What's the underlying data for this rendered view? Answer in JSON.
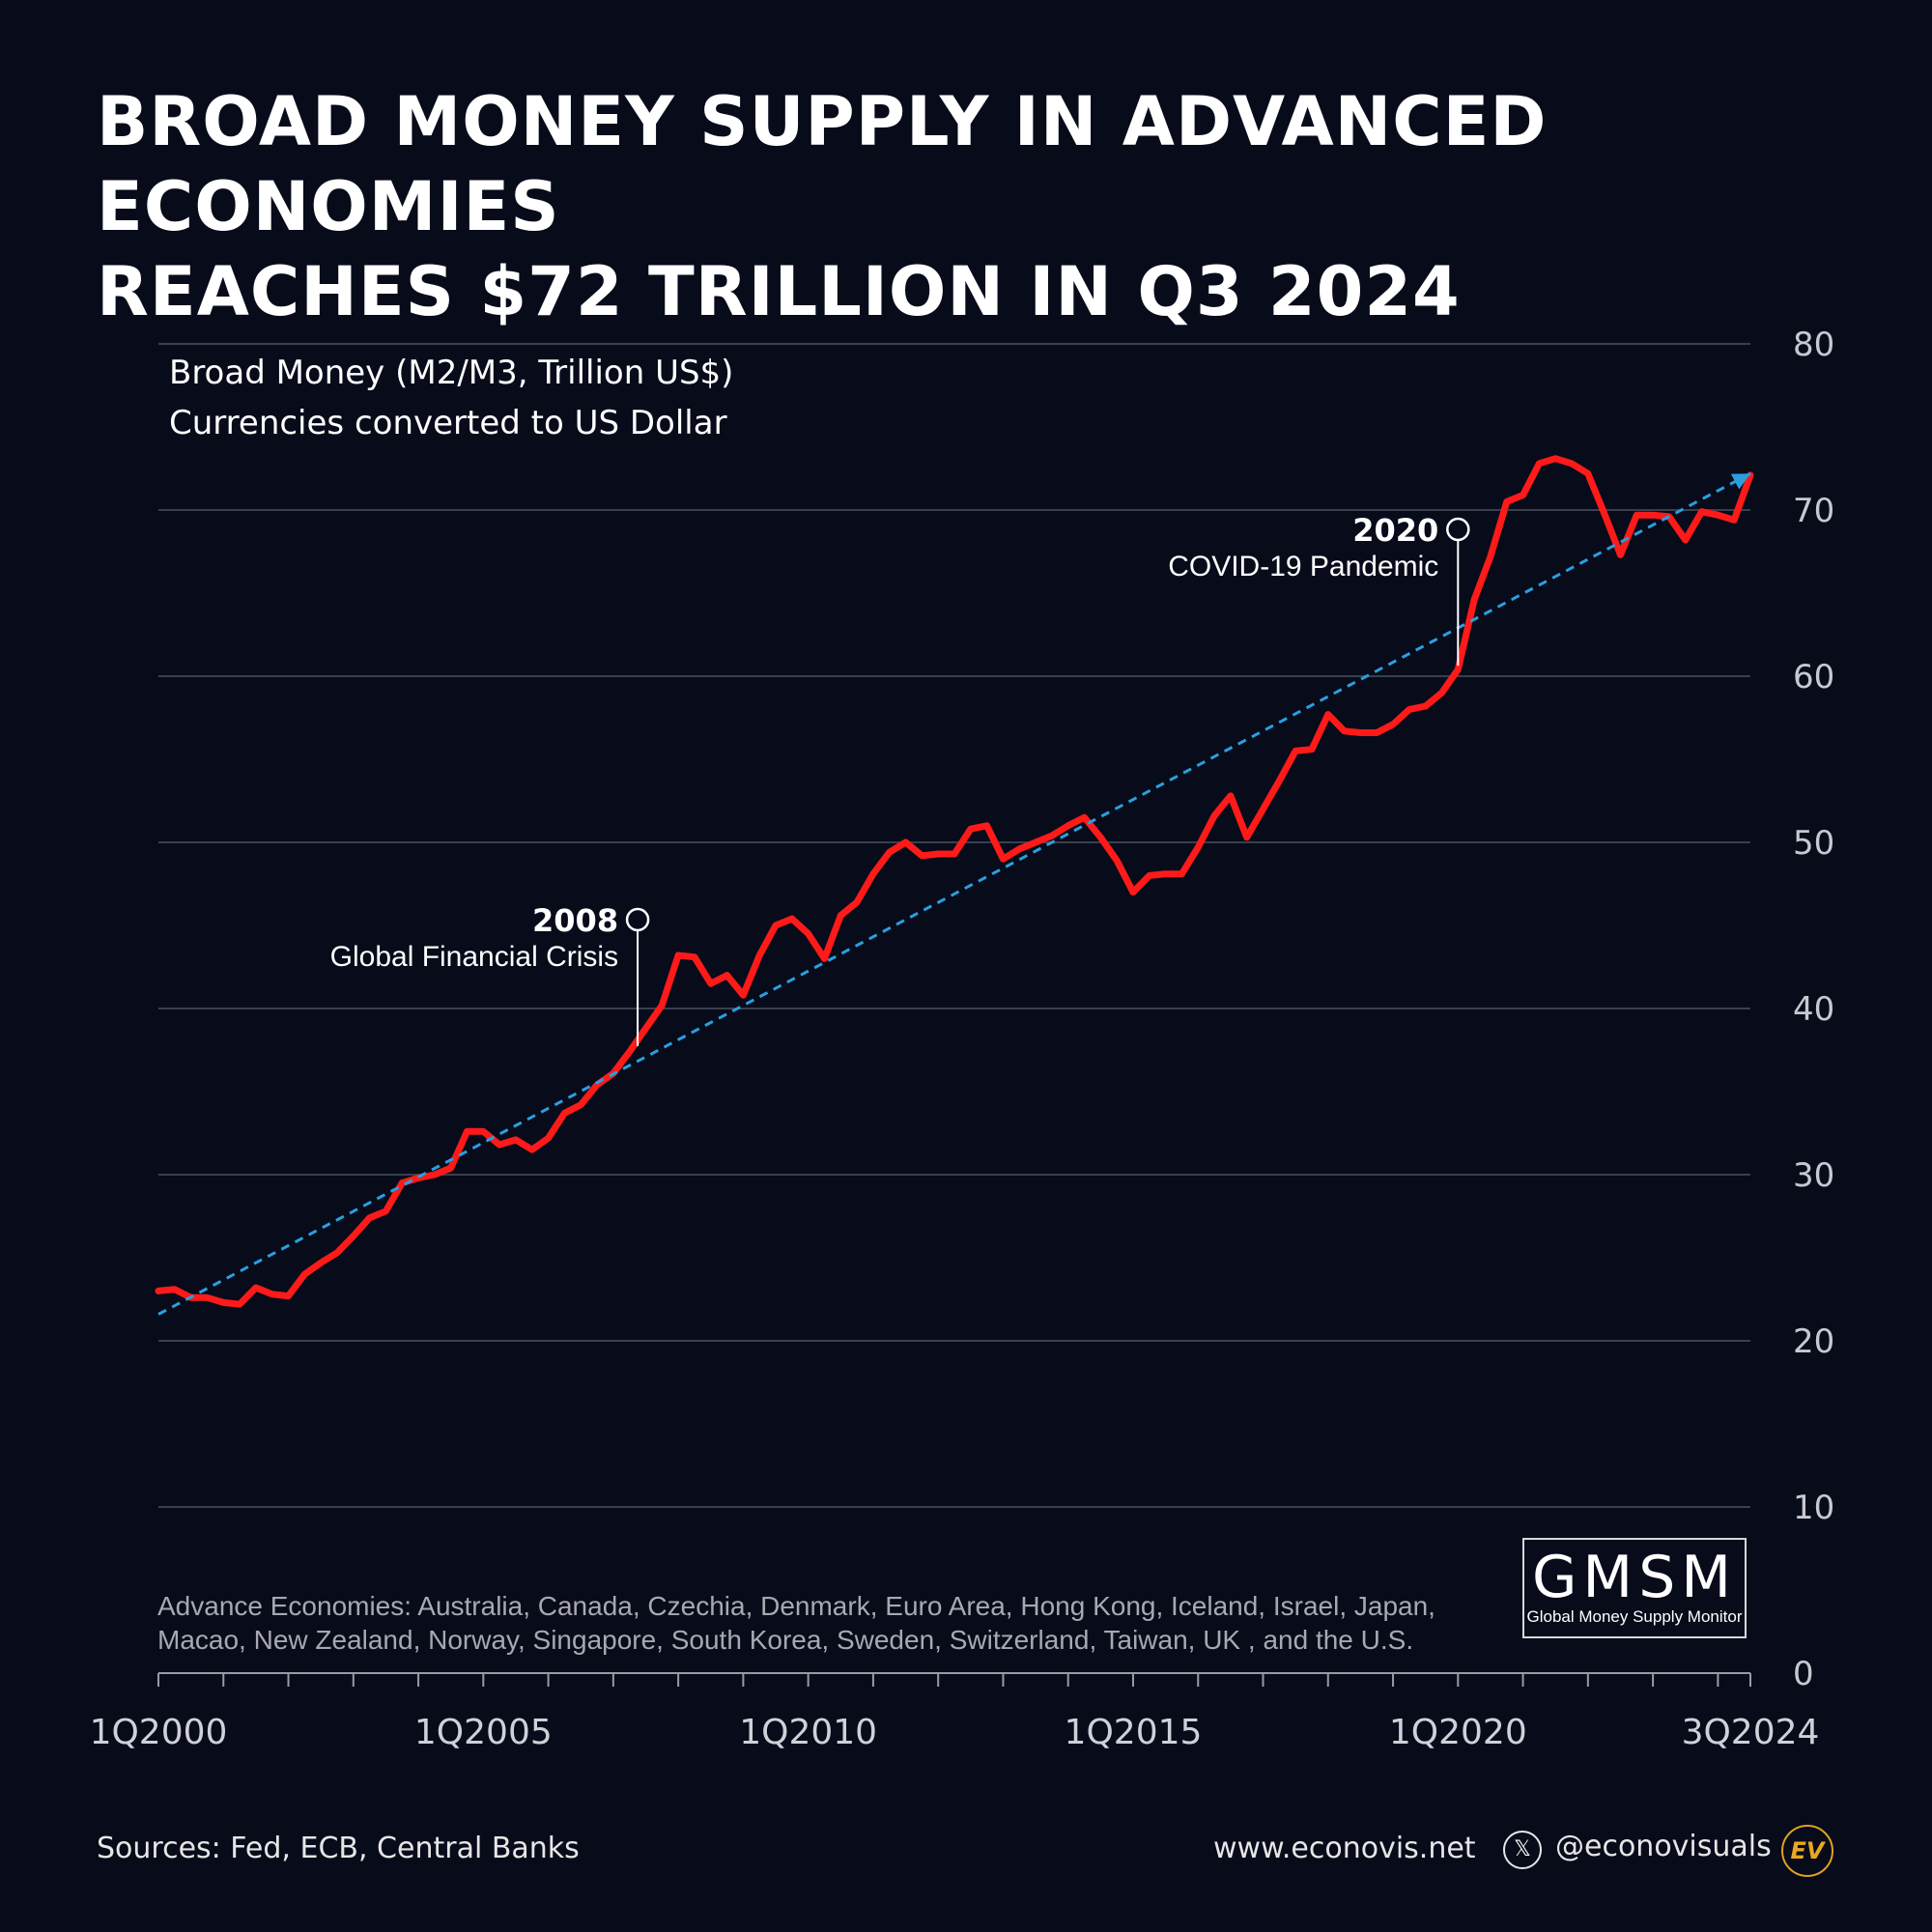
{
  "header": {
    "title_line1": "BROAD MONEY SUPPLY IN ADVANCED ECONOMIES",
    "title_line2": "REACHES $72 TRILLION IN Q3 2024"
  },
  "chart_data": {
    "type": "line",
    "subtitle_line1": "Broad Money (M2/M3, Trillion US$)",
    "subtitle_line2": "Currencies converted to US Dollar",
    "ylim": [
      0,
      80
    ],
    "yticks": [
      "0",
      "10",
      "20",
      "30",
      "40",
      "50",
      "60",
      "70",
      "80"
    ],
    "x_tick_labels": [
      "1Q2000",
      "1Q2005",
      "1Q2010",
      "1Q2015",
      "1Q2020",
      "3Q2024"
    ],
    "grid": true,
    "series": [
      {
        "color": "#ff1a1a",
        "x": [
          2000.0,
          2000.25,
          2000.5,
          2000.75,
          2001.0,
          2001.25,
          2001.5,
          2001.75,
          2002.0,
          2002.25,
          2002.5,
          2002.75,
          2003.0,
          2003.25,
          2003.5,
          2003.75,
          2004.0,
          2004.25,
          2004.5,
          2004.75,
          2005.0,
          2005.25,
          2005.5,
          2005.75,
          2006.0,
          2006.25,
          2006.5,
          2006.75,
          2007.0,
          2007.25,
          2007.5,
          2007.75,
          2008.0,
          2008.25,
          2008.5,
          2008.75,
          2009.0,
          2009.25,
          2009.5,
          2009.75,
          2010.0,
          2010.25,
          2010.5,
          2010.75,
          2011.0,
          2011.25,
          2011.5,
          2011.75,
          2012.0,
          2012.25,
          2012.5,
          2012.75,
          2013.0,
          2013.25,
          2013.5,
          2013.75,
          2014.0,
          2014.25,
          2014.5,
          2014.75,
          2015.0,
          2015.25,
          2015.5,
          2015.75,
          2016.0,
          2016.25,
          2016.5,
          2016.75,
          2017.0,
          2017.25,
          2017.5,
          2017.75,
          2018.0,
          2018.25,
          2018.5,
          2018.75,
          2019.0,
          2019.25,
          2019.5,
          2019.75,
          2020.0,
          2020.25,
          2020.5,
          2020.75,
          2021.0,
          2021.25,
          2021.5,
          2021.75,
          2022.0,
          2022.25,
          2022.5,
          2022.75,
          2023.0,
          2023.25,
          2023.5,
          2023.75,
          2024.0,
          2024.25,
          2024.5
        ],
        "values": [
          23.0,
          23.1,
          22.6,
          22.6,
          22.3,
          22.2,
          23.2,
          22.8,
          22.7,
          24.0,
          24.7,
          25.3,
          26.3,
          27.4,
          27.8,
          29.5,
          29.8,
          30.0,
          30.4,
          32.6,
          32.6,
          31.8,
          32.1,
          31.5,
          32.2,
          33.7,
          34.2,
          35.4,
          36.1,
          37.4,
          38.8,
          40.2,
          43.2,
          43.1,
          41.5,
          42.0,
          40.8,
          43.2,
          45.0,
          45.4,
          44.5,
          43.0,
          45.6,
          46.4,
          48.1,
          49.4,
          50.0,
          49.2,
          49.3,
          49.3,
          50.8,
          51.0,
          49.0,
          49.6,
          50.0,
          50.4,
          51.0,
          51.5,
          50.3,
          48.9,
          47.0,
          48.0,
          48.1,
          48.1,
          49.7,
          51.6,
          52.8,
          50.3,
          52.0,
          53.7,
          55.5,
          55.6,
          57.7,
          56.7,
          56.6,
          56.6,
          57.1,
          58.0,
          58.2,
          59.0,
          60.4,
          64.6,
          67.2,
          70.5,
          70.9,
          72.8,
          73.1,
          72.8,
          72.2,
          69.8,
          67.3,
          69.7,
          69.7,
          69.6,
          68.2,
          69.9,
          69.7,
          69.4,
          72.1
        ]
      },
      {
        "type": "trend",
        "style": "dashed",
        "color": "#2a9fe0",
        "x": [
          2000.0,
          2024.5
        ],
        "values": [
          21.6,
          72.2
        ]
      }
    ],
    "annotations": [
      {
        "year": "2008",
        "label": "Global Financial Crisis",
        "x": 2007.375,
        "y": 37.5
      },
      {
        "year": "2020",
        "label": "COVID-19 Pandemic",
        "x": 2020.0,
        "y": 60.4
      }
    ],
    "footnote_line1": "Advance Economies: Australia, Canada, Czechia, Denmark, Euro Area, Hong Kong, Iceland, Israel, Japan,",
    "footnote_line2": "Macao, New Zealand, Norway, Singapore, South Korea, Sweden, Switzerland, Taiwan, UK , and the U.S."
  },
  "badge": {
    "logo": "GMSM",
    "subtitle": "Global Money Supply Monitor"
  },
  "footer": {
    "sources": "Sources: Fed, ECB, Central Banks",
    "website": "www.econovis.net",
    "x_icon": "x-logo-icon",
    "x_glyph": "𝕏",
    "handle": "@econovisuals",
    "ev_logo": "EV"
  },
  "colors": {
    "background": "#070b1a",
    "line": "#ff1a1a",
    "trend": "#2a9fe0",
    "grid": "#3a3f4e",
    "accent": "#e8a820"
  }
}
